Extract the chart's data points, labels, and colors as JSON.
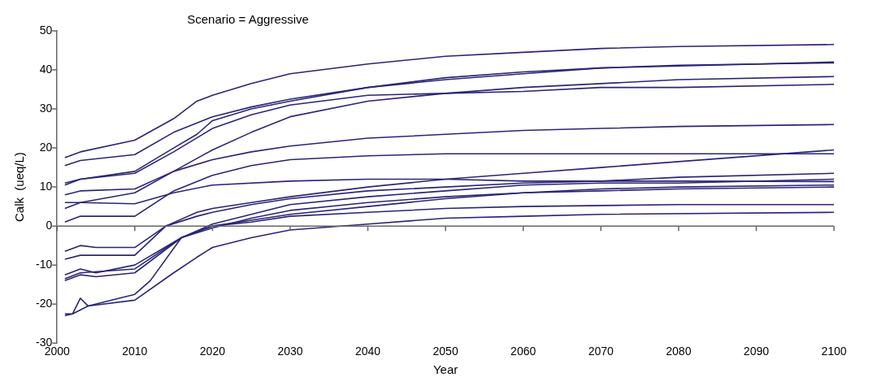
{
  "chart_data": {
    "type": "line",
    "title": "Scenario = Aggressive",
    "xlabel": "Year",
    "ylabel": "Calk  (ueq/L)",
    "xlim": [
      2000,
      2100
    ],
    "xticks": [
      2000,
      2010,
      2020,
      2030,
      2040,
      2050,
      2060,
      2070,
      2080,
      2090,
      2100
    ],
    "ylim": [
      -30,
      50
    ],
    "yticks": [
      -30,
      -20,
      -10,
      0,
      10,
      20,
      30,
      40,
      50
    ],
    "grid": false,
    "ref_lines": [
      {
        "axis": "y",
        "value": 0,
        "color": "#666666"
      }
    ],
    "legend": false,
    "marker": "none",
    "line_style": "solid",
    "series": [
      {
        "color": "#2a2577",
        "x": [
          2001,
          2003,
          2010,
          2015,
          2018,
          2020,
          2025,
          2030,
          2040,
          2050,
          2060,
          2070,
          2080,
          2100
        ],
        "values": [
          17.5,
          19,
          22,
          27.5,
          32,
          33.5,
          36.5,
          39,
          41.5,
          43.5,
          44.5,
          45.5,
          46,
          46.5
        ]
      },
      {
        "color": "#2a2577",
        "x": [
          2001,
          2003,
          2010,
          2015,
          2020,
          2025,
          2030,
          2040,
          2050,
          2060,
          2070,
          2080,
          2100
        ],
        "values": [
          15.5,
          16.8,
          18.3,
          24,
          28,
          30.5,
          32.5,
          35.5,
          37.5,
          39,
          40.5,
          41,
          42
        ]
      },
      {
        "color": "#2a2577",
        "x": [
          2001,
          2003,
          2010,
          2015,
          2018,
          2020,
          2025,
          2030,
          2040,
          2050,
          2060,
          2070,
          2080,
          2100
        ],
        "values": [
          11,
          12,
          14,
          20,
          23.5,
          27,
          30,
          32,
          35.5,
          38,
          39.5,
          40.5,
          41.2,
          41.8
        ]
      },
      {
        "color": "#2a2577",
        "x": [
          2001,
          2003,
          2010,
          2015,
          2020,
          2025,
          2030,
          2040,
          2050,
          2060,
          2070,
          2080,
          2100
        ],
        "values": [
          10.5,
          12,
          13.5,
          19,
          25,
          28.5,
          31,
          33.5,
          34,
          35.5,
          36.5,
          37.5,
          38.3
        ]
      },
      {
        "color": "#2a2577",
        "x": [
          2001,
          2003,
          2010,
          2015,
          2020,
          2025,
          2030,
          2040,
          2050,
          2060,
          2070,
          2080,
          2100
        ],
        "values": [
          4.5,
          6,
          8.5,
          14,
          19.5,
          24,
          28,
          32,
          34,
          34.5,
          35.5,
          35.5,
          36.3
        ]
      },
      {
        "color": "#2a2577",
        "x": [
          2001,
          2003,
          2010,
          2015,
          2020,
          2025,
          2030,
          2040,
          2050,
          2060,
          2070,
          2080,
          2100
        ],
        "values": [
          8,
          9,
          9.5,
          14,
          17,
          19,
          20.5,
          22.5,
          23.5,
          24.5,
          25,
          25.5,
          26
        ]
      },
      {
        "color": "#2a2577",
        "x": [
          2001,
          2003,
          2010,
          2015,
          2020,
          2030,
          2040,
          2050,
          2060,
          2080,
          2100
        ],
        "values": [
          6,
          6,
          5.7,
          8.5,
          10.5,
          11.5,
          12,
          12,
          11.5,
          11.5,
          11.4
        ]
      },
      {
        "color": "#2a2577",
        "x": [
          2001,
          2003,
          2010,
          2015,
          2020,
          2025,
          2030,
          2040,
          2050,
          2100
        ],
        "values": [
          1,
          2.5,
          2.5,
          9,
          13,
          15.5,
          17,
          18,
          18.5,
          18.5
        ]
      },
      {
        "color": "#2a2577",
        "x": [
          2001,
          2003,
          2005,
          2010,
          2014,
          2018,
          2020,
          2025,
          2030,
          2040,
          2050,
          2060,
          2070,
          2080,
          2100
        ],
        "values": [
          -6.5,
          -5,
          -5.5,
          -5.5,
          0,
          3.5,
          4.5,
          6,
          7.5,
          10,
          12,
          13.5,
          15,
          16.5,
          19.5
        ]
      },
      {
        "color": "#2a2577",
        "x": [
          2001,
          2003,
          2010,
          2014,
          2018,
          2020,
          2025,
          2030,
          2040,
          2050,
          2060,
          2070,
          2080,
          2100
        ],
        "values": [
          -8.5,
          -7.5,
          -7.5,
          0,
          2.5,
          3.5,
          5.5,
          7,
          9,
          10,
          11,
          11.5,
          12.5,
          13.5
        ]
      },
      {
        "color": "#2a2577",
        "x": [
          2001,
          2003,
          2005,
          2010,
          2016,
          2020,
          2025,
          2030,
          2040,
          2050,
          2060,
          2070,
          2080,
          2100
        ],
        "values": [
          -12.5,
          -11,
          -12,
          -10,
          -3,
          0.5,
          3,
          5.5,
          7.5,
          9,
          10.5,
          11,
          11,
          12
        ]
      },
      {
        "color": "#2a2577",
        "x": [
          2001,
          2003,
          2010,
          2016,
          2020,
          2025,
          2030,
          2040,
          2050,
          2060,
          2070,
          2080,
          2100
        ],
        "values": [
          -13.5,
          -12,
          -11,
          -3,
          -0.5,
          2,
          4,
          6,
          7.5,
          8.5,
          9.5,
          10,
          10.5
        ]
      },
      {
        "color": "#2a2577",
        "x": [
          2001,
          2003,
          2005,
          2010,
          2016,
          2020,
          2025,
          2030,
          2040,
          2050,
          2060,
          2070,
          2080,
          2100
        ],
        "values": [
          -14,
          -12.5,
          -13,
          -12,
          -3,
          0,
          1.5,
          3,
          5,
          7,
          8.5,
          9,
          9.5,
          10
        ]
      },
      {
        "color": "#2a2577",
        "x": [
          2001,
          2002,
          2003,
          2004,
          2010,
          2012,
          2016,
          2020,
          2025,
          2030,
          2040,
          2050,
          2060,
          2080,
          2100
        ],
        "values": [
          -22.5,
          -22.5,
          -18.5,
          -20.5,
          -17.5,
          -14,
          -3,
          0,
          1,
          2.5,
          3.5,
          4.5,
          5,
          5.5,
          5.5
        ]
      },
      {
        "color": "#2a2577",
        "x": [
          2001,
          2002,
          2004,
          2010,
          2015,
          2018,
          2020,
          2025,
          2030,
          2040,
          2050,
          2060,
          2070,
          2100
        ],
        "values": [
          -23,
          -22.5,
          -20.5,
          -19,
          -12,
          -8,
          -5.5,
          -3,
          -1,
          0.5,
          2,
          2.5,
          3,
          3.5
        ]
      }
    ]
  }
}
